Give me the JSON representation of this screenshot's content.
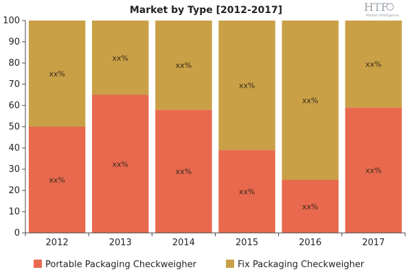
{
  "chart_data": {
    "type": "bar",
    "stacked": true,
    "title": "Market by Type [2012-2017]",
    "categories": [
      "2012",
      "2013",
      "2014",
      "2015",
      "2016",
      "2017"
    ],
    "series": [
      {
        "name": "Portable Packaging Checkweigher",
        "color": "#E8694E",
        "values": [
          50,
          65,
          58,
          39,
          25,
          59
        ],
        "labels": [
          "xx%",
          "xx%",
          "xx%",
          "xx%",
          "xx%",
          "xx%"
        ]
      },
      {
        "name": "Fix Packaging Checkweigher",
        "color": "#C9A046",
        "values": [
          50,
          35,
          42,
          61,
          75,
          41
        ],
        "labels": [
          "xx%",
          "xx%",
          "xx%",
          "xx%",
          "xx%",
          "xx%"
        ]
      }
    ],
    "ylim": [
      0,
      100
    ],
    "yticks": [
      0,
      10,
      20,
      30,
      40,
      50,
      60,
      70,
      80,
      90,
      100
    ],
    "grid": false,
    "legend_position": "bottom"
  },
  "logo": {
    "text": "HTF",
    "subtext": "Market Intelligence"
  }
}
